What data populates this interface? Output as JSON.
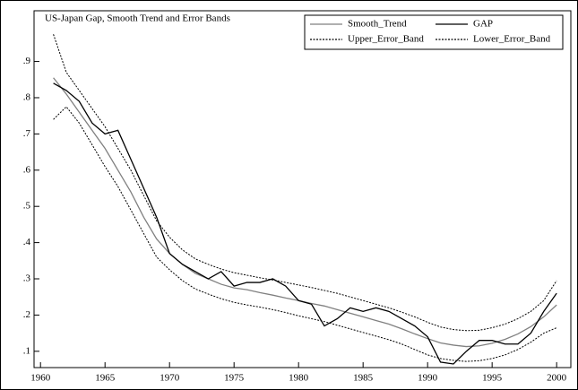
{
  "chart_data": {
    "type": "line",
    "title": "US-Japan Gap, Smooth Trend and Error Bands",
    "x": [
      1961,
      1962,
      1963,
      1964,
      1965,
      1966,
      1967,
      1968,
      1969,
      1970,
      1971,
      1972,
      1973,
      1974,
      1975,
      1976,
      1977,
      1978,
      1979,
      1980,
      1981,
      1982,
      1983,
      1984,
      1985,
      1986,
      1987,
      1988,
      1989,
      1990,
      1991,
      1992,
      1993,
      1994,
      1995,
      1996,
      1997,
      1998,
      1999,
      2000
    ],
    "series": [
      {
        "name": "Smooth_Trend",
        "color": "#808080",
        "style": "solid",
        "values": [
          0.855,
          0.81,
          0.76,
          0.71,
          0.66,
          0.6,
          0.54,
          0.47,
          0.41,
          0.37,
          0.34,
          0.315,
          0.3,
          0.285,
          0.275,
          0.27,
          0.262,
          0.255,
          0.247,
          0.24,
          0.232,
          0.225,
          0.215,
          0.205,
          0.195,
          0.185,
          0.175,
          0.162,
          0.148,
          0.135,
          0.123,
          0.117,
          0.113,
          0.115,
          0.122,
          0.133,
          0.148,
          0.168,
          0.195,
          0.228
        ]
      },
      {
        "name": "GAP",
        "color": "#000000",
        "style": "solid",
        "values": [
          0.84,
          0.82,
          0.79,
          0.73,
          0.7,
          0.71,
          0.63,
          0.55,
          0.47,
          0.37,
          0.34,
          0.32,
          0.3,
          0.32,
          0.28,
          0.29,
          0.29,
          0.3,
          0.28,
          0.24,
          0.23,
          0.17,
          0.19,
          0.22,
          0.21,
          0.22,
          0.21,
          0.19,
          0.17,
          0.14,
          0.07,
          0.065,
          0.1,
          0.13,
          0.13,
          0.12,
          0.12,
          0.15,
          0.21,
          0.26
        ]
      },
      {
        "name": "Upper_Error_Band",
        "color": "#000000",
        "style": "dotted",
        "values": [
          0.975,
          0.87,
          0.82,
          0.77,
          0.72,
          0.66,
          0.6,
          0.53,
          0.46,
          0.415,
          0.38,
          0.355,
          0.34,
          0.327,
          0.317,
          0.31,
          0.303,
          0.297,
          0.29,
          0.283,
          0.276,
          0.268,
          0.26,
          0.25,
          0.24,
          0.23,
          0.22,
          0.208,
          0.195,
          0.18,
          0.167,
          0.16,
          0.157,
          0.158,
          0.165,
          0.175,
          0.19,
          0.21,
          0.24,
          0.295
        ]
      },
      {
        "name": "Lower_Error_Band",
        "color": "#000000",
        "style": "dotted",
        "values": [
          0.74,
          0.775,
          0.73,
          0.67,
          0.61,
          0.555,
          0.49,
          0.425,
          0.36,
          0.325,
          0.295,
          0.272,
          0.258,
          0.245,
          0.235,
          0.228,
          0.222,
          0.215,
          0.207,
          0.198,
          0.19,
          0.182,
          0.172,
          0.162,
          0.152,
          0.142,
          0.132,
          0.12,
          0.105,
          0.09,
          0.08,
          0.075,
          0.072,
          0.074,
          0.08,
          0.09,
          0.105,
          0.125,
          0.15,
          0.165
        ]
      }
    ],
    "xlim": [
      1959.5,
      2001.1
    ],
    "ylim": [
      0.055,
      1.04
    ],
    "xticks": [
      1960,
      1965,
      1970,
      1975,
      1980,
      1985,
      1990,
      1995,
      2000
    ],
    "yticks": [
      {
        "value": 0.1,
        "label": ".1"
      },
      {
        "value": 0.2,
        "label": ".2"
      },
      {
        "value": 0.3,
        "label": ".3"
      },
      {
        "value": 0.4,
        "label": ".4"
      },
      {
        "value": 0.5,
        "label": ".5"
      },
      {
        "value": 0.6,
        "label": ".6"
      },
      {
        "value": 0.7,
        "label": ".7"
      },
      {
        "value": 0.8,
        "label": ".8"
      },
      {
        "value": 0.9,
        "label": ".9"
      }
    ],
    "legend": "upper right"
  }
}
